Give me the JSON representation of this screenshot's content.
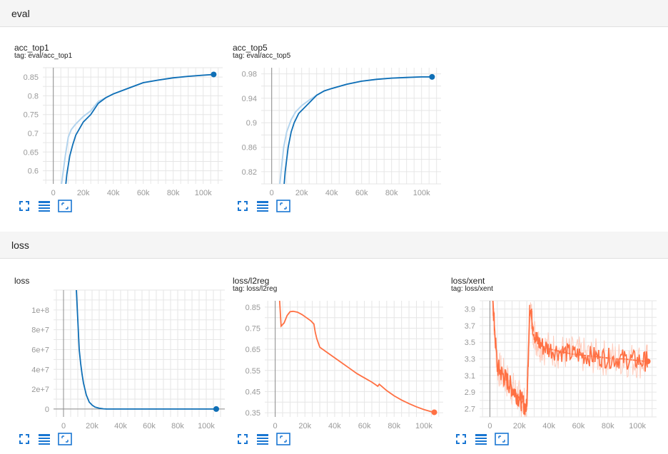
{
  "sections": [
    {
      "title": "eval"
    },
    {
      "title": "loss"
    }
  ],
  "chart_data": [
    {
      "type": "line",
      "title": "acc_top1",
      "tag": "tag: eval/acc_top1",
      "color": "#0f6fb6",
      "smooth_color": "#0f6fb6",
      "xlim": [
        -7000,
        113000
      ],
      "ylim": [
        0.565,
        0.875
      ],
      "x_ticks": [
        0,
        20000,
        40000,
        60000,
        80000,
        100000
      ],
      "x_tick_labels": [
        "0",
        "20k",
        "40k",
        "60k",
        "80k",
        "100k"
      ],
      "y_ticks": [
        0.6,
        0.65,
        0.7,
        0.75,
        0.8,
        0.85
      ],
      "y_tick_labels": [
        "0.6",
        "0.65",
        "0.7",
        "0.75",
        "0.8",
        "0.85"
      ],
      "series": [
        {
          "values_x": [
            5000,
            8000,
            10000,
            12000,
            15000,
            20000,
            25000,
            30000,
            35000,
            40000,
            50000,
            60000,
            70000,
            80000,
            90000,
            100000,
            107000
          ],
          "values_y": [
            0.55,
            0.64,
            0.69,
            0.71,
            0.725,
            0.745,
            0.76,
            0.785,
            0.795,
            0.805,
            0.82,
            0.835,
            0.842,
            0.848,
            0.852,
            0.855,
            0.857
          ],
          "role": "raw"
        },
        {
          "values_x": [
            8000,
            9000,
            11000,
            13000,
            15000,
            20000,
            25000,
            30000,
            35000,
            40000,
            50000,
            60000,
            70000,
            80000,
            90000,
            100000,
            107000
          ],
          "values_y": [
            0.55,
            0.59,
            0.64,
            0.67,
            0.695,
            0.73,
            0.75,
            0.78,
            0.795,
            0.805,
            0.82,
            0.835,
            0.842,
            0.848,
            0.852,
            0.855,
            0.857
          ],
          "role": "smoothed"
        }
      ]
    },
    {
      "type": "line",
      "title": "acc_top5",
      "tag": "tag: eval/acc_top5",
      "color": "#0f6fb6",
      "smooth_color": "#0f6fb6",
      "xlim": [
        -7000,
        113000
      ],
      "ylim": [
        0.8,
        0.99
      ],
      "x_ticks": [
        0,
        20000,
        40000,
        60000,
        80000,
        100000
      ],
      "x_tick_labels": [
        "0",
        "20k",
        "40k",
        "60k",
        "80k",
        "100k"
      ],
      "y_ticks": [
        0.82,
        0.86,
        0.9,
        0.94,
        0.98
      ],
      "y_tick_labels": [
        "0.82",
        "0.86",
        "0.9",
        "0.94",
        "0.98"
      ],
      "series": [
        {
          "values_x": [
            5000,
            8000,
            10000,
            13000,
            16000,
            20000,
            25000,
            30000,
            35000,
            40000,
            50000,
            60000,
            70000,
            80000,
            90000,
            100000,
            107000
          ],
          "values_y": [
            0.79,
            0.86,
            0.885,
            0.905,
            0.918,
            0.928,
            0.937,
            0.945,
            0.952,
            0.956,
            0.963,
            0.968,
            0.971,
            0.973,
            0.974,
            0.975,
            0.975
          ],
          "role": "raw"
        },
        {
          "values_x": [
            8000,
            9000,
            11000,
            13000,
            15000,
            18000,
            22000,
            26000,
            30000,
            35000,
            40000,
            50000,
            60000,
            70000,
            80000,
            90000,
            100000,
            107000
          ],
          "values_y": [
            0.79,
            0.82,
            0.86,
            0.885,
            0.9,
            0.915,
            0.925,
            0.935,
            0.945,
            0.952,
            0.956,
            0.963,
            0.968,
            0.971,
            0.973,
            0.974,
            0.975,
            0.975
          ],
          "role": "smoothed"
        }
      ]
    },
    {
      "type": "line",
      "title": "loss",
      "tag": "",
      "color": "#0f6fb6",
      "smooth_color": "#0f6fb6",
      "xlim": [
        -7000,
        113000
      ],
      "ylim": [
        -8000000,
        120000000
      ],
      "x_ticks": [
        0,
        20000,
        40000,
        60000,
        80000,
        100000
      ],
      "x_tick_labels": [
        "0",
        "20k",
        "40k",
        "60k",
        "80k",
        "100k"
      ],
      "y_ticks": [
        0,
        20000000,
        40000000,
        60000000,
        80000000,
        100000000
      ],
      "y_tick_labels": [
        "0",
        "2e+7",
        "4e+7",
        "6e+7",
        "8e+7",
        "1e+8"
      ],
      "series": [
        {
          "values_x": [
            9000,
            10000,
            11000,
            12000,
            13000,
            14000,
            16000,
            18000,
            20000,
            22000,
            25000,
            28000,
            30000,
            40000,
            60000,
            80000,
            100000,
            107000
          ],
          "values_y": [
            120000000,
            90000000,
            60000000,
            46000000,
            35000000,
            26000000,
            14000000,
            7000000,
            4000000,
            2000000,
            800000,
            200000,
            50000,
            0,
            0,
            0,
            0,
            0
          ],
          "role": "smoothed"
        }
      ]
    },
    {
      "type": "line",
      "title": "loss/l2reg",
      "tag": "tag: loss/l2reg",
      "color": "#ff7043",
      "smooth_color": "#ff7043",
      "xlim": [
        -7000,
        113000
      ],
      "ylim": [
        0.33,
        0.88
      ],
      "x_ticks": [
        0,
        20000,
        40000,
        60000,
        80000,
        100000
      ],
      "x_tick_labels": [
        "0",
        "20k",
        "40k",
        "60k",
        "80k",
        "100k"
      ],
      "y_ticks": [
        0.35,
        0.45,
        0.55,
        0.65,
        0.75,
        0.85
      ],
      "y_tick_labels": [
        "0.35",
        "0.45",
        "0.55",
        "0.65",
        "0.75",
        "0.85"
      ],
      "series": [
        {
          "values_x": [
            3000,
            4000,
            6000,
            8000,
            10000,
            12000,
            15000,
            18000,
            21000,
            24000,
            26000,
            27000,
            28000,
            30000,
            35000,
            40000,
            45000,
            50000,
            55000,
            60000,
            65000,
            68000,
            69000,
            70000,
            75000,
            80000,
            85000,
            90000,
            95000,
            100000,
            105000,
            107000
          ],
          "values_y": [
            0.88,
            0.76,
            0.775,
            0.81,
            0.828,
            0.83,
            0.826,
            0.815,
            0.8,
            0.785,
            0.77,
            0.73,
            0.7,
            0.66,
            0.635,
            0.61,
            0.585,
            0.56,
            0.535,
            0.515,
            0.495,
            0.48,
            0.475,
            0.485,
            0.455,
            0.43,
            0.41,
            0.393,
            0.378,
            0.365,
            0.355,
            0.352
          ],
          "role": "smoothed"
        }
      ]
    },
    {
      "type": "line",
      "title": "loss/xent",
      "tag": "tag: loss/xent",
      "color": "#ff7043",
      "smooth_color": "#ffccbc",
      "xlim": [
        -7000,
        113000
      ],
      "ylim": [
        2.6,
        4.0
      ],
      "x_ticks": [
        0,
        20000,
        40000,
        60000,
        80000,
        100000
      ],
      "x_tick_labels": [
        "0",
        "20k",
        "40k",
        "60k",
        "80k",
        "100k"
      ],
      "y_ticks": [
        2.7,
        2.9,
        3.1,
        3.3,
        3.5,
        3.7,
        3.9
      ],
      "y_tick_labels": [
        "2.7",
        "2.9",
        "3.1",
        "3.3",
        "3.5",
        "3.7",
        "3.9"
      ],
      "series": [
        {
          "values_x": [
            2000,
            3000,
            5000,
            7000,
            9000,
            11000,
            13000,
            15000,
            17000,
            19000,
            21000,
            23000,
            25000,
            27000,
            29000,
            31000,
            33000,
            36000,
            40000,
            45000,
            50000,
            55000,
            60000,
            65000,
            70000,
            75000,
            80000,
            85000,
            90000,
            95000,
            100000,
            105000,
            107000
          ],
          "values_y": [
            4.0,
            3.7,
            3.2,
            3.15,
            3.1,
            3.05,
            3.0,
            2.95,
            2.9,
            2.85,
            2.8,
            2.75,
            2.7,
            3.95,
            3.7,
            3.55,
            3.5,
            3.45,
            3.42,
            3.4,
            3.38,
            3.36,
            3.35,
            3.34,
            3.33,
            3.32,
            3.31,
            3.3,
            3.3,
            3.29,
            3.28,
            3.27,
            3.27
          ],
          "role": "smoothed"
        }
      ]
    }
  ]
}
